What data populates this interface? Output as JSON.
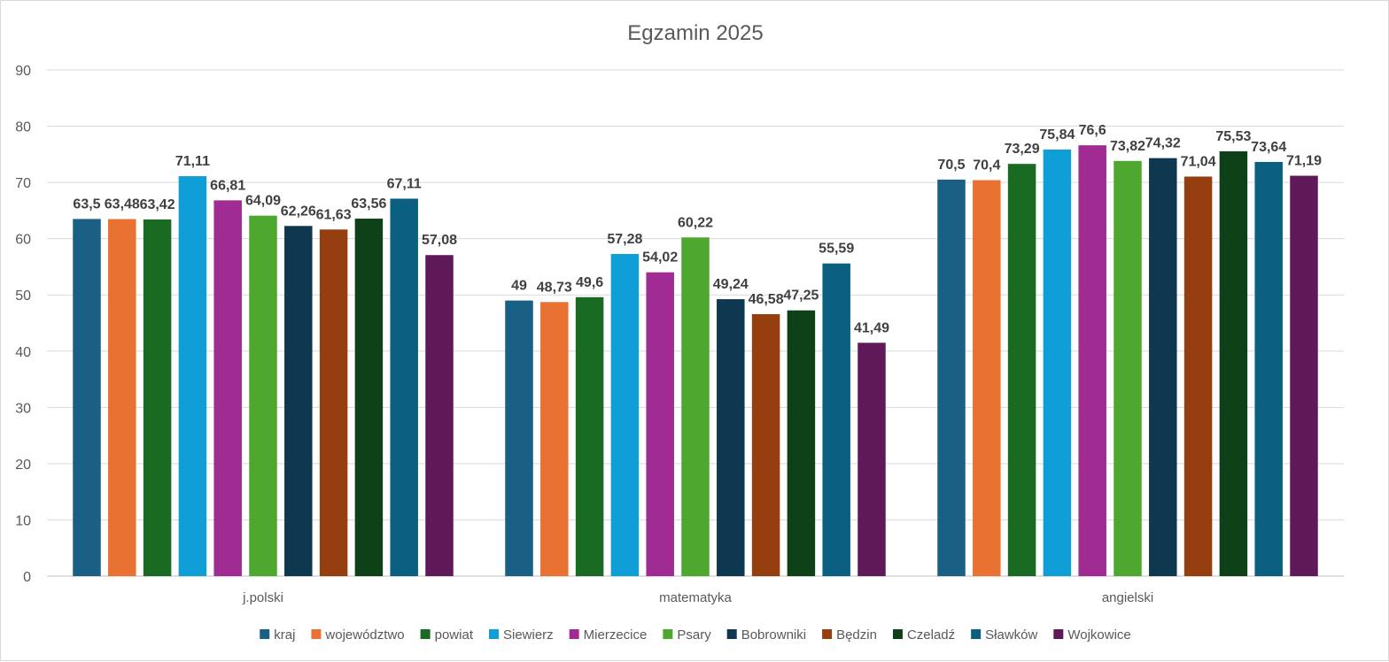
{
  "chart_data": {
    "type": "bar",
    "title": "Egzamin 2025",
    "xlabel": "",
    "ylabel": "",
    "ylim": [
      0,
      90
    ],
    "yticks": [
      0,
      10,
      20,
      30,
      40,
      50,
      60,
      70,
      80,
      90
    ],
    "grid": true,
    "legend_position": "bottom",
    "categories": [
      "j.polski",
      "matematyka",
      "angielski"
    ],
    "series": [
      {
        "name": "kraj",
        "color": "#1a5f84",
        "values": [
          63.5,
          49,
          70.5
        ],
        "labels": [
          "63,5",
          "49",
          "70,5"
        ]
      },
      {
        "name": "województwo",
        "color": "#e97132",
        "values": [
          63.48,
          48.73,
          70.4
        ],
        "labels": [
          "63,48",
          "48,73",
          "70,4"
        ]
      },
      {
        "name": "powiat",
        "color": "#196b24",
        "values": [
          63.42,
          49.6,
          73.29
        ],
        "labels": [
          "63,42",
          "49,6",
          "73,29"
        ]
      },
      {
        "name": "Siewierz",
        "color": "#0f9ed5",
        "values": [
          71.11,
          57.28,
          75.84
        ],
        "labels": [
          "71,11",
          "57,28",
          "75,84"
        ]
      },
      {
        "name": "Mierzecice",
        "color": "#a02b93",
        "values": [
          66.81,
          54.02,
          76.6
        ],
        "labels": [
          "66,81",
          "54,02",
          "76,6"
        ]
      },
      {
        "name": "Psary",
        "color": "#4ea72e",
        "values": [
          64.09,
          60.22,
          73.82
        ],
        "labels": [
          "64,09",
          "60,22",
          "73,82"
        ]
      },
      {
        "name": "Bobrowniki",
        "color": "#0d384f",
        "values": [
          62.26,
          49.24,
          74.32
        ],
        "labels": [
          "62,26",
          "49,24",
          "74,32"
        ]
      },
      {
        "name": "Będzin",
        "color": "#953f11",
        "values": [
          61.63,
          46.58,
          71.04
        ],
        "labels": [
          "61,63",
          "46,58",
          "71,04"
        ]
      },
      {
        "name": "Czeladź",
        "color": "#0e4117",
        "values": [
          63.56,
          47.25,
          75.53
        ],
        "labels": [
          "63,56",
          "47,25",
          "75,53"
        ]
      },
      {
        "name": "Sławków",
        "color": "#0b5f80",
        "values": [
          67.11,
          55.59,
          73.64
        ],
        "labels": [
          "67,11",
          "55,59",
          "73,64"
        ]
      },
      {
        "name": "Wojkowice",
        "color": "#5f1958",
        "values": [
          57.08,
          41.49,
          71.19
        ],
        "labels": [
          "57,08",
          "41,49",
          "71,19"
        ]
      }
    ]
  }
}
